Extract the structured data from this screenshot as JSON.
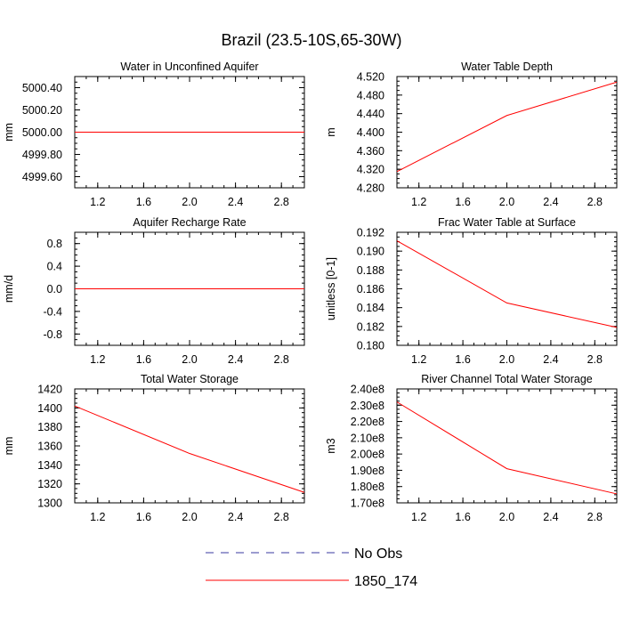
{
  "figure": {
    "title": "Brazil (23.5-10S,65-30W)"
  },
  "colors": {
    "obs": "#3a3aa0",
    "model": "#ff0000",
    "axis": "#000000"
  },
  "legend": {
    "entries": [
      {
        "label": "No Obs",
        "style": "dashed",
        "color": "#3a3aa0"
      },
      {
        "label": "1850_174",
        "style": "solid",
        "color": "#ff0000"
      }
    ]
  },
  "chart_data": [
    {
      "type": "line",
      "title": "Water in Unconfined Aquifer",
      "xlabel": "",
      "ylabel": "mm",
      "xlim": [
        1.0,
        3.0
      ],
      "ylim": [
        4999.5,
        5000.5
      ],
      "xticks": [
        1.2,
        1.6,
        2.0,
        2.4,
        2.8
      ],
      "xtick_labels": [
        "1.2",
        "1.6",
        "2.0",
        "2.4",
        "2.8"
      ],
      "yticks": [
        4999.6,
        4999.8,
        5000.0,
        5000.2,
        5000.4
      ],
      "ytick_labels": [
        "4999.60",
        "4999.80",
        "5000.00",
        "5000.20",
        "5000.40"
      ],
      "series": [
        {
          "name": "1850_174",
          "x": [
            1,
            2,
            3
          ],
          "y": [
            5000.0,
            5000.0,
            5000.0
          ]
        }
      ]
    },
    {
      "type": "line",
      "title": "Water Table Depth",
      "xlabel": "",
      "ylabel": "m",
      "xlim": [
        1.0,
        3.0
      ],
      "ylim": [
        4.28,
        4.52
      ],
      "xticks": [
        1.2,
        1.6,
        2.0,
        2.4,
        2.8
      ],
      "xtick_labels": [
        "1.2",
        "1.6",
        "2.0",
        "2.4",
        "2.8"
      ],
      "yticks": [
        4.28,
        4.32,
        4.36,
        4.4,
        4.44,
        4.48,
        4.52
      ],
      "ytick_labels": [
        "4.280",
        "4.320",
        "4.360",
        "4.400",
        "4.440",
        "4.480",
        "4.520"
      ],
      "series": [
        {
          "name": "1850_174",
          "x": [
            1,
            2,
            3
          ],
          "y": [
            4.315,
            4.436,
            4.508
          ]
        }
      ]
    },
    {
      "type": "line",
      "title": "Aquifer Recharge Rate",
      "xlabel": "",
      "ylabel": "mm/d",
      "xlim": [
        1.0,
        3.0
      ],
      "ylim": [
        -1.0,
        1.0
      ],
      "xticks": [
        1.2,
        1.6,
        2.0,
        2.4,
        2.8
      ],
      "xtick_labels": [
        "1.2",
        "1.6",
        "2.0",
        "2.4",
        "2.8"
      ],
      "yticks": [
        -0.8,
        -0.4,
        0.0,
        0.4,
        0.8
      ],
      "ytick_labels": [
        "-0.8",
        "-0.4",
        "0.0",
        "0.4",
        "0.8"
      ],
      "series": [
        {
          "name": "1850_174",
          "x": [
            1,
            2,
            3
          ],
          "y": [
            0.0,
            0.0,
            0.0
          ]
        }
      ]
    },
    {
      "type": "line",
      "title": "Frac Water Table at Surface",
      "xlabel": "",
      "ylabel": "unitless [0-1]",
      "xlim": [
        1.0,
        3.0
      ],
      "ylim": [
        0.18,
        0.192
      ],
      "xticks": [
        1.2,
        1.6,
        2.0,
        2.4,
        2.8
      ],
      "xtick_labels": [
        "1.2",
        "1.6",
        "2.0",
        "2.4",
        "2.8"
      ],
      "yticks": [
        0.18,
        0.182,
        0.184,
        0.186,
        0.188,
        0.19,
        0.192
      ],
      "ytick_labels": [
        "0.180",
        "0.182",
        "0.184",
        "0.186",
        "0.188",
        "0.190",
        "0.192"
      ],
      "series": [
        {
          "name": "1850_174",
          "x": [
            1,
            2,
            3
          ],
          "y": [
            0.1911,
            0.1845,
            0.1819
          ]
        }
      ]
    },
    {
      "type": "line",
      "title": "Total Water Storage",
      "xlabel": "",
      "ylabel": "mm",
      "xlim": [
        1.0,
        3.0
      ],
      "ylim": [
        1300,
        1420
      ],
      "xticks": [
        1.2,
        1.6,
        2.0,
        2.4,
        2.8
      ],
      "xtick_labels": [
        "1.2",
        "1.6",
        "2.0",
        "2.4",
        "2.8"
      ],
      "yticks": [
        1300,
        1320,
        1340,
        1360,
        1380,
        1400,
        1420
      ],
      "ytick_labels": [
        "1300",
        "1320",
        "1340",
        "1360",
        "1380",
        "1400",
        "1420"
      ],
      "series": [
        {
          "name": "1850_174",
          "x": [
            1,
            2,
            3
          ],
          "y": [
            1402,
            1352,
            1311
          ]
        }
      ]
    },
    {
      "type": "line",
      "title": "River Channel Total Water Storage",
      "xlabel": "",
      "ylabel": "m3",
      "xlim": [
        1.0,
        3.0
      ],
      "ylim": [
        170000000,
        240000000
      ],
      "xticks": [
        1.2,
        1.6,
        2.0,
        2.4,
        2.8
      ],
      "xtick_labels": [
        "1.2",
        "1.6",
        "2.0",
        "2.4",
        "2.8"
      ],
      "yticks": [
        170000000,
        180000000,
        190000000,
        200000000,
        210000000,
        220000000,
        230000000,
        240000000
      ],
      "ytick_labels": [
        "1.70e8",
        "1.80e8",
        "1.90e8",
        "2.00e8",
        "2.10e8",
        "2.20e8",
        "2.30e8",
        "2.40e8"
      ],
      "series": [
        {
          "name": "1850_174",
          "x": [
            1,
            2,
            3
          ],
          "y": [
            232000000,
            191000000,
            175500000
          ]
        }
      ]
    }
  ]
}
